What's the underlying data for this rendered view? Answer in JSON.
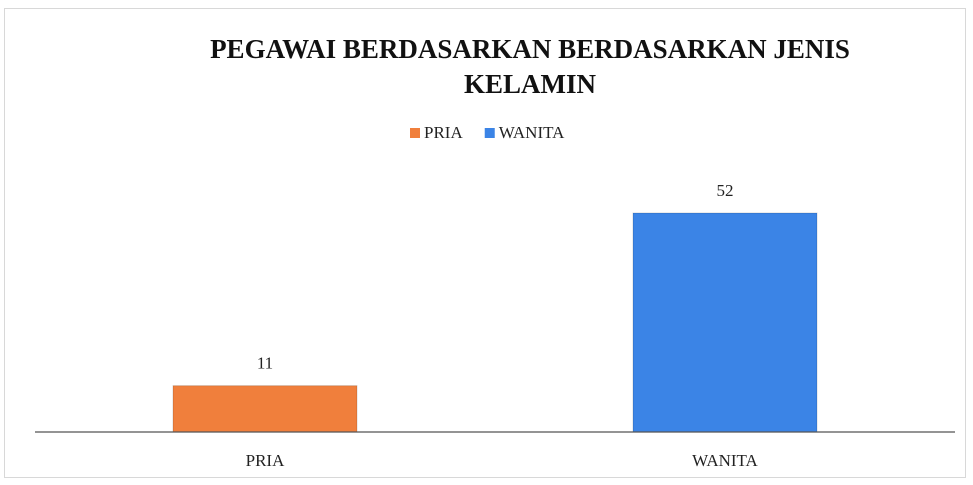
{
  "chart_data": {
    "type": "bar",
    "title": "PEGAWAI BERDASARKAN BERDASARKAN JENIS KELAMIN",
    "categories": [
      "PRIA",
      "WANITA"
    ],
    "series": [
      {
        "name": "PRIA",
        "color": "#f07f3c",
        "values": [
          11,
          null
        ]
      },
      {
        "name": "WANITA",
        "color": "#3b84e6",
        "values": [
          null,
          52
        ]
      }
    ],
    "legend": "top"
  }
}
